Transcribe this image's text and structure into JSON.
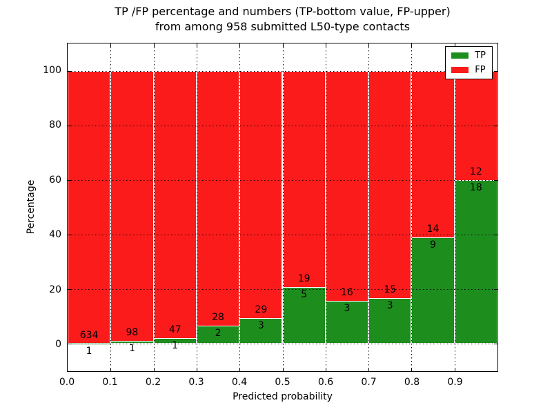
{
  "title": {
    "line1": "TP /FP percentage and numbers (TP-bottom value, FP-upper)",
    "line2": "from among 958 submitted L50-type contacts"
  },
  "chart_data": {
    "type": "bar",
    "subtype": "stacked-percentage-histogram",
    "title_line1": "TP /FP percentage and numbers (TP-bottom value, FP-upper)",
    "title_line2": "from among 958 submitted L50-type contacts",
    "xlabel": "Predicted probability",
    "ylabel": "Percentage",
    "xlim": [
      0,
      1
    ],
    "ylim": [
      -10,
      110
    ],
    "xtick_labels": [
      "0.0",
      "0.1",
      "0.2",
      "0.3",
      "0.4",
      "0.5",
      "0.6",
      "0.7",
      "0.8",
      "0.9"
    ],
    "ytick_values": [
      0,
      20,
      40,
      60,
      80,
      100
    ],
    "ytick_labels": [
      "0",
      "20",
      "40",
      "60",
      "80",
      "100"
    ],
    "grid_style": "dotted",
    "total_contacts_in_title": 958,
    "tp_color": "#1d8d1d",
    "fp_color": "#fb1b1b",
    "bar_edge_color": "#ffffff",
    "bins": [
      {
        "x_start": 0.0,
        "x_end": 0.1,
        "tp": 1,
        "fp": 634
      },
      {
        "x_start": 0.1,
        "x_end": 0.2,
        "tp": 1,
        "fp": 98
      },
      {
        "x_start": 0.2,
        "x_end": 0.3,
        "tp": 1,
        "fp": 47
      },
      {
        "x_start": 0.3,
        "x_end": 0.4,
        "tp": 2,
        "fp": 28
      },
      {
        "x_start": 0.4,
        "x_end": 0.5,
        "tp": 3,
        "fp": 29
      },
      {
        "x_start": 0.5,
        "x_end": 0.6,
        "tp": 5,
        "fp": 19
      },
      {
        "x_start": 0.6,
        "x_end": 0.7,
        "tp": 3,
        "fp": 16
      },
      {
        "x_start": 0.7,
        "x_end": 0.8,
        "tp": 3,
        "fp": 15
      },
      {
        "x_start": 0.8,
        "x_end": 0.9,
        "tp": 9,
        "fp": 14
      },
      {
        "x_start": 0.9,
        "x_end": 1.0,
        "tp": 18,
        "fp": 12
      }
    ],
    "legend": {
      "position": "upper-right",
      "entries": [
        {
          "label": "TP",
          "color": "#1d8d1d"
        },
        {
          "label": "FP",
          "color": "#fb1b1b"
        }
      ]
    }
  }
}
